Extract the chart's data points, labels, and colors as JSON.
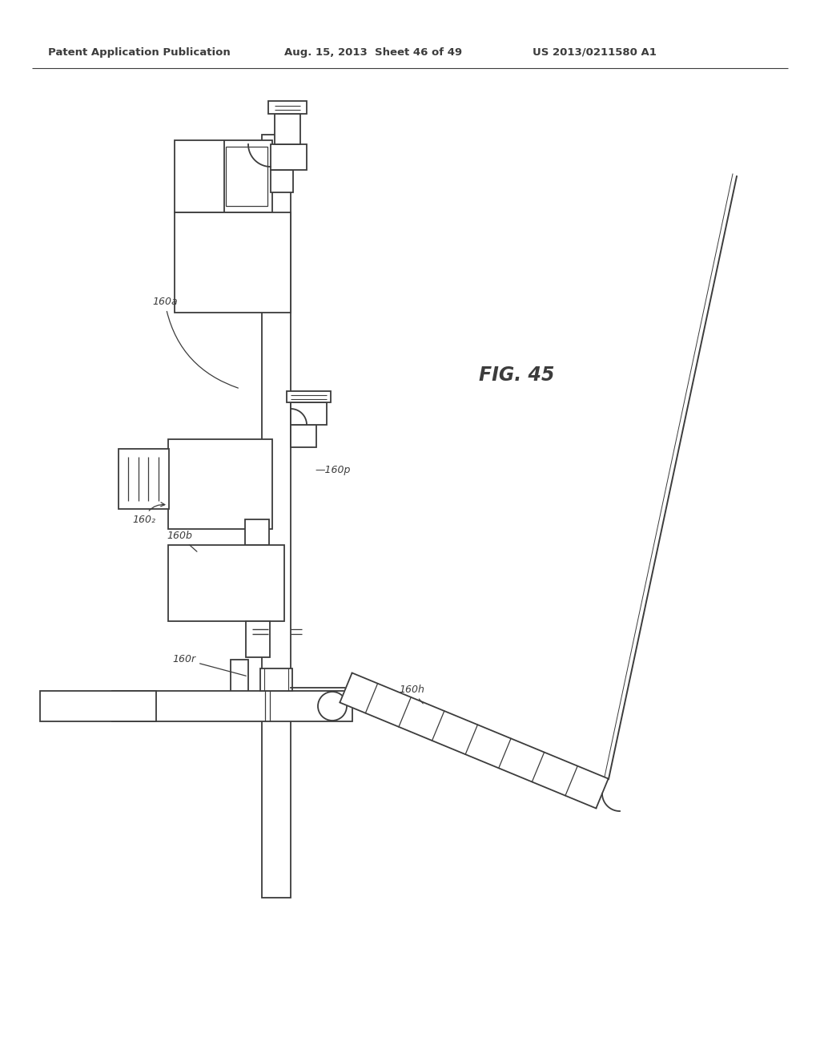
{
  "bg_color": "#ffffff",
  "lc": "#3c3c3c",
  "lw": 1.3,
  "header1": "Patent Application Publication",
  "header2": "Aug. 15, 2013  Sheet 46 of 49",
  "header3": "US 2013/0211580 A1",
  "fig_label": "FIG. 45",
  "label_160a": "160a",
  "label_160b": "160b",
  "label_1602": "160₂",
  "label_160p": "—160p",
  "label_160r": "160r",
  "label_160h": "160h",
  "note": "All coords in data-space 0..1024 x 0..1320, y=0 at TOP"
}
